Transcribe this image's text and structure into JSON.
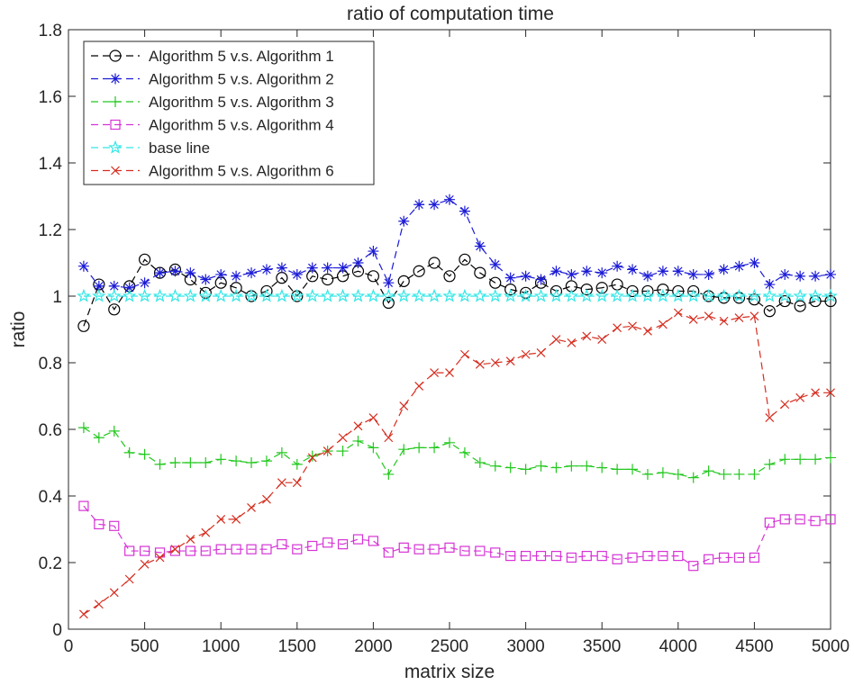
{
  "chart_data": {
    "type": "line",
    "title": "ratio of computation time",
    "xlabel": "matrix size",
    "ylabel": "ratio",
    "xlim": [
      0,
      5000
    ],
    "ylim": [
      0,
      1.8
    ],
    "xticks": [
      0,
      500,
      1000,
      1500,
      2000,
      2500,
      3000,
      3500,
      4000,
      4500,
      5000
    ],
    "yticks": [
      0,
      0.2,
      0.4,
      0.6,
      0.8,
      1,
      1.2,
      1.4,
      1.6,
      1.8
    ],
    "grid": false,
    "legend_position": "top-left",
    "x": [
      100,
      200,
      300,
      400,
      500,
      600,
      700,
      800,
      900,
      1000,
      1100,
      1200,
      1300,
      1400,
      1500,
      1600,
      1700,
      1800,
      1900,
      2000,
      2100,
      2200,
      2300,
      2400,
      2500,
      2600,
      2700,
      2800,
      2900,
      3000,
      3100,
      3200,
      3300,
      3400,
      3500,
      3600,
      3700,
      3800,
      3900,
      4000,
      4100,
      4200,
      4300,
      4400,
      4500,
      4600,
      4700,
      4800,
      4900,
      5000
    ],
    "series": [
      {
        "name": "Algorithm 5 v.s. Algorithm 1",
        "color": "#000000",
        "marker": "circle",
        "values": [
          0.91,
          1.035,
          0.96,
          1.03,
          1.11,
          1.07,
          1.08,
          1.05,
          1.01,
          1.04,
          1.025,
          1.0,
          1.015,
          1.055,
          1.0,
          1.06,
          1.05,
          1.06,
          1.075,
          1.06,
          0.98,
          1.045,
          1.075,
          1.1,
          1.06,
          1.11,
          1.07,
          1.04,
          1.02,
          1.01,
          1.04,
          1.015,
          1.03,
          1.02,
          1.025,
          1.035,
          1.015,
          1.015,
          1.02,
          1.015,
          1.015,
          1.0,
          0.995,
          0.995,
          0.99,
          0.955,
          0.985,
          0.97,
          0.985,
          0.985
        ]
      },
      {
        "name": "Algorithm 5 v.s. Algorithm 2",
        "color": "#1c1cd6",
        "marker": "asterisk",
        "values": [
          1.09,
          1.03,
          1.03,
          1.025,
          1.04,
          1.07,
          1.075,
          1.07,
          1.05,
          1.065,
          1.06,
          1.07,
          1.08,
          1.085,
          1.065,
          1.085,
          1.085,
          1.085,
          1.1,
          1.135,
          1.04,
          1.225,
          1.275,
          1.275,
          1.29,
          1.255,
          1.15,
          1.095,
          1.055,
          1.06,
          1.05,
          1.075,
          1.065,
          1.075,
          1.07,
          1.09,
          1.08,
          1.06,
          1.075,
          1.075,
          1.065,
          1.065,
          1.08,
          1.09,
          1.1,
          1.035,
          1.065,
          1.06,
          1.06,
          1.065
        ]
      },
      {
        "name": "Algorithm 5 v.s. Algorithm 3",
        "color": "#22c81e",
        "marker": "plus",
        "values": [
          0.605,
          0.575,
          0.595,
          0.53,
          0.525,
          0.495,
          0.5,
          0.5,
          0.5,
          0.51,
          0.505,
          0.5,
          0.505,
          0.53,
          0.495,
          0.52,
          0.535,
          0.535,
          0.565,
          0.545,
          0.465,
          0.54,
          0.545,
          0.545,
          0.56,
          0.53,
          0.5,
          0.49,
          0.485,
          0.48,
          0.49,
          0.485,
          0.49,
          0.49,
          0.485,
          0.48,
          0.48,
          0.465,
          0.47,
          0.465,
          0.455,
          0.475,
          0.465,
          0.465,
          0.465,
          0.495,
          0.51,
          0.51,
          0.51,
          0.515
        ]
      },
      {
        "name": "Algorithm 5 v.s. Algorithm 4",
        "color": "#d633d6",
        "marker": "square",
        "values": [
          0.37,
          0.315,
          0.31,
          0.235,
          0.235,
          0.23,
          0.235,
          0.235,
          0.235,
          0.24,
          0.24,
          0.24,
          0.24,
          0.255,
          0.24,
          0.25,
          0.26,
          0.255,
          0.27,
          0.265,
          0.23,
          0.245,
          0.24,
          0.24,
          0.245,
          0.235,
          0.235,
          0.23,
          0.22,
          0.22,
          0.22,
          0.22,
          0.215,
          0.22,
          0.22,
          0.21,
          0.215,
          0.22,
          0.22,
          0.22,
          0.19,
          0.21,
          0.215,
          0.215,
          0.215,
          0.32,
          0.33,
          0.33,
          0.325,
          0.33
        ]
      },
      {
        "name": "base line",
        "color": "#33e6e6",
        "marker": "pentagram",
        "values": [
          1,
          1,
          1,
          1,
          1,
          1,
          1,
          1,
          1,
          1,
          1,
          1,
          1,
          1,
          1,
          1,
          1,
          1,
          1,
          1,
          1,
          1,
          1,
          1,
          1,
          1,
          1,
          1,
          1,
          1,
          1,
          1,
          1,
          1,
          1,
          1,
          1,
          1,
          1,
          1,
          1,
          1,
          1,
          1,
          1,
          1,
          1,
          1,
          1,
          1
        ]
      },
      {
        "name": "Algorithm 5 v.s. Algorithm 6",
        "color": "#d62d1f",
        "marker": "x",
        "values": [
          0.045,
          0.075,
          0.11,
          0.15,
          0.195,
          0.215,
          0.24,
          0.27,
          0.29,
          0.33,
          0.33,
          0.365,
          0.39,
          0.44,
          0.44,
          0.515,
          0.535,
          0.575,
          0.61,
          0.635,
          0.575,
          0.67,
          0.73,
          0.77,
          0.77,
          0.825,
          0.795,
          0.8,
          0.805,
          0.825,
          0.83,
          0.87,
          0.86,
          0.88,
          0.87,
          0.905,
          0.91,
          0.895,
          0.915,
          0.95,
          0.93,
          0.94,
          0.925,
          0.935,
          0.94,
          0.635,
          0.675,
          0.695,
          0.71,
          0.71
        ]
      }
    ]
  }
}
